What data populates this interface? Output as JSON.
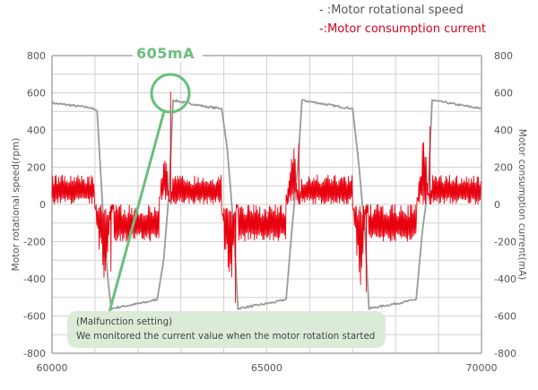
{
  "legend": {
    "speed_label": "- :Motor rotational speed",
    "current_label": "-:Motor consumption current"
  },
  "annotation": {
    "peak_label": "605mA",
    "note_line1": "(Malfunction setting)",
    "note_line2": "We monitored the current value when the motor rotation started"
  },
  "colors": {
    "speed": "#9a9a9a",
    "current": "#e8000f",
    "annotation_green": "#6abf7c",
    "note_fill": "#dcebd8",
    "grid": "#d0d0d0",
    "axis": "#a8a8a8"
  },
  "chart_data": {
    "type": "line",
    "title": "",
    "xlabel": "",
    "ylabel": "Motor rotational speed(rpm)",
    "y2label": "Motor consumption current(mA)",
    "xlim": [
      60000,
      70000
    ],
    "ylim": [
      -800,
      800
    ],
    "y2lim": [
      -800,
      800
    ],
    "x_ticks": [
      60000,
      65000,
      70000
    ],
    "y_ticks": [
      800,
      600,
      400,
      200,
      0,
      -200,
      -400,
      -600,
      -800
    ],
    "y2_ticks": [
      800,
      600,
      400,
      200,
      0,
      -200,
      -400,
      -600,
      -800
    ],
    "grid": true,
    "x_grid_step": 1000,
    "y_grid_step": 100,
    "legend_position": "top-right",
    "series": [
      {
        "name": "Motor rotational speed",
        "axis": "left",
        "color": "#9a9a9a",
        "keypoints": [
          [
            60000,
            545
          ],
          [
            60900,
            520
          ],
          [
            61050,
            500
          ],
          [
            61200,
            -100
          ],
          [
            61300,
            -400
          ],
          [
            61380,
            -560
          ],
          [
            62200,
            -525
          ],
          [
            62450,
            -510
          ],
          [
            62600,
            -300
          ],
          [
            62720,
            50
          ],
          [
            62820,
            560
          ],
          [
            63600,
            525
          ],
          [
            63950,
            515
          ],
          [
            64080,
            300
          ],
          [
            64220,
            -100
          ],
          [
            64330,
            -560
          ],
          [
            65200,
            -525
          ],
          [
            65450,
            -510
          ],
          [
            65600,
            -100
          ],
          [
            65720,
            200
          ],
          [
            65820,
            560
          ],
          [
            66700,
            525
          ],
          [
            67000,
            515
          ],
          [
            67150,
            200
          ],
          [
            67300,
            -200
          ],
          [
            67380,
            -560
          ],
          [
            68200,
            -525
          ],
          [
            68480,
            -510
          ],
          [
            68620,
            -150
          ],
          [
            68760,
            100
          ],
          [
            68850,
            560
          ],
          [
            69600,
            530
          ],
          [
            70000,
            515
          ]
        ]
      },
      {
        "name": "Motor consumption current",
        "axis": "right",
        "color": "#e8000f",
        "segments": [
          {
            "x0": 60000,
            "x1": 61000,
            "lo": 0,
            "hi": 160,
            "kind": "noise"
          },
          {
            "x0": 61000,
            "x1": 61450,
            "lo": -480,
            "hi": 0,
            "kind": "spike",
            "min": -360
          },
          {
            "x0": 61450,
            "x1": 62500,
            "lo": -200,
            "hi": 0,
            "kind": "noise"
          },
          {
            "x0": 62500,
            "x1": 62800,
            "lo": 0,
            "hi": 280,
            "kind": "spike",
            "max": 605
          },
          {
            "x0": 62800,
            "x1": 63950,
            "lo": 0,
            "hi": 160,
            "kind": "noise"
          },
          {
            "x0": 63950,
            "x1": 64350,
            "lo": -520,
            "hi": 0,
            "kind": "spike",
            "min": -530
          },
          {
            "x0": 64350,
            "x1": 65450,
            "lo": -200,
            "hi": 0,
            "kind": "noise"
          },
          {
            "x0": 65450,
            "x1": 65800,
            "lo": 0,
            "hi": 350,
            "kind": "spike",
            "max": 330
          },
          {
            "x0": 65800,
            "x1": 67000,
            "lo": 0,
            "hi": 160,
            "kind": "noise"
          },
          {
            "x0": 67000,
            "x1": 67380,
            "lo": -470,
            "hi": 0,
            "kind": "spike",
            "min": -470
          },
          {
            "x0": 67380,
            "x1": 68500,
            "lo": -200,
            "hi": 0,
            "kind": "noise"
          },
          {
            "x0": 68500,
            "x1": 68850,
            "lo": 0,
            "hi": 320,
            "kind": "spike",
            "max": 420
          },
          {
            "x0": 68850,
            "x1": 70000,
            "lo": 0,
            "hi": 160,
            "kind": "noise"
          }
        ]
      }
    ],
    "annotations": [
      {
        "text": "605mA",
        "x": 62750,
        "y": 605,
        "shape": "circle"
      }
    ]
  }
}
